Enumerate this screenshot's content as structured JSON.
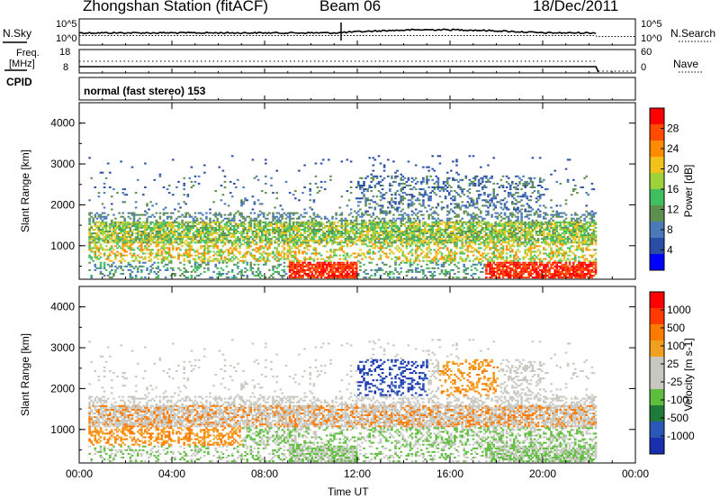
{
  "header": {
    "title": "Zhongshan Station (fitACF)",
    "beam": "Beam 06",
    "date": "18/Dec/2011"
  },
  "top_panels": {
    "nsky_label": "N.Sky",
    "nsearch_label": "N.Search",
    "noise_ticks_left": [
      "10^5",
      "10^0"
    ],
    "noise_ticks_right": [
      "10^5",
      "10^0"
    ],
    "freq_label_1": "Freq.",
    "freq_label_2": "[MHz]",
    "freq_ticks": [
      "18",
      "8"
    ],
    "nave_label": "Nave",
    "nave_ticks": [
      "60",
      "0"
    ],
    "cpid_label": "CPID",
    "cpid_text": "normal (fast stereo) 153"
  },
  "colors": {
    "power_scale": [
      "#0000ff",
      "#2a4ea6",
      "#4a79b8",
      "#5f8f4f",
      "#3fbf5f",
      "#9ed23a",
      "#f2c21a",
      "#ff8c00",
      "#ff4a00",
      "#ff0000"
    ],
    "velocity_scale": [
      "#1a2fb0",
      "#2a57b8",
      "#1f7a3a",
      "#5dbd3c",
      "#c8c8c0",
      "#c8c8c0",
      "#f2a020",
      "#ff7a00",
      "#ff3a00",
      "#ff0000"
    ]
  },
  "chart_data": [
    {
      "type": "heatmap",
      "name": "power",
      "ylabel": "Slant Range [km]",
      "xlabel": "",
      "x_ticks": [
        "00:00",
        "04:00",
        "08:00",
        "12:00",
        "16:00",
        "20:00",
        "00:00"
      ],
      "xlim_hours": [
        0,
        24
      ],
      "ylim": [
        180,
        4500
      ],
      "y_ticks": [
        "1000",
        "2000",
        "3000",
        "4000"
      ],
      "colorbar_label": "Power [dB]",
      "colorbar_ticks": [
        "4",
        "8",
        "12",
        "16",
        "20",
        "24",
        "28"
      ],
      "colorbar_range": [
        0,
        30
      ]
    },
    {
      "type": "heatmap",
      "name": "velocity",
      "ylabel": "Slant Range [km]",
      "xlabel": "Time UT",
      "x_ticks": [
        "00:00",
        "04:00",
        "08:00",
        "12:00",
        "16:00",
        "20:00",
        "00:00"
      ],
      "xlim_hours": [
        0,
        24
      ],
      "ylim": [
        180,
        4500
      ],
      "y_ticks": [
        "1000",
        "2000",
        "3000",
        "4000"
      ],
      "colorbar_label": "Velocity [m s-1]",
      "colorbar_ticks": [
        "1000",
        "500",
        "100",
        "25",
        "-25",
        "-100",
        "-500",
        "-1000"
      ],
      "colorbar_range": [
        -1000,
        1000
      ]
    }
  ]
}
